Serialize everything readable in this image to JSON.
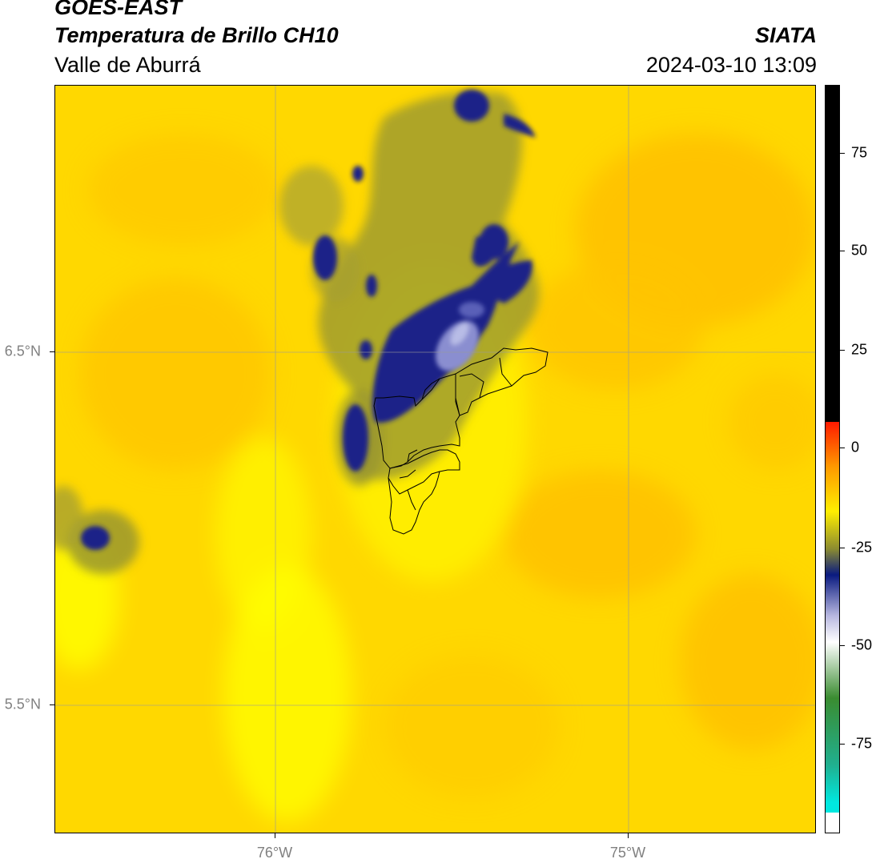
{
  "header": {
    "satellite": "GOES-EAST",
    "product": "Temperatura de Brillo CH10",
    "region": "Valle de Aburrá",
    "agency": "SIATA",
    "datetime": "2024-03-10 13:09"
  },
  "axes": {
    "lat_labels": [
      "6.5°N",
      "5.5°N"
    ],
    "lon_labels": [
      "76°W",
      "75°W"
    ]
  },
  "colorbar": {
    "ticks": [
      "75",
      "50",
      "25",
      "0",
      "-25",
      "-50",
      "-75"
    ],
    "colors": {
      "black": "#000000",
      "red": "#ff1a00",
      "orange": "#ff9900",
      "yellow": "#ffee00",
      "olive": "#8c8c30",
      "navy": "#0a1a80",
      "lavender": "#b8b8e0",
      "white": "#ffffff",
      "green": "#3a8c30",
      "teal": "#20b090",
      "cyan": "#00e8e0"
    }
  },
  "map": {
    "background_color": "#ffd400",
    "cold_cloud_color": "#1e2a8c",
    "gridline_color": "#a0a0a0"
  }
}
